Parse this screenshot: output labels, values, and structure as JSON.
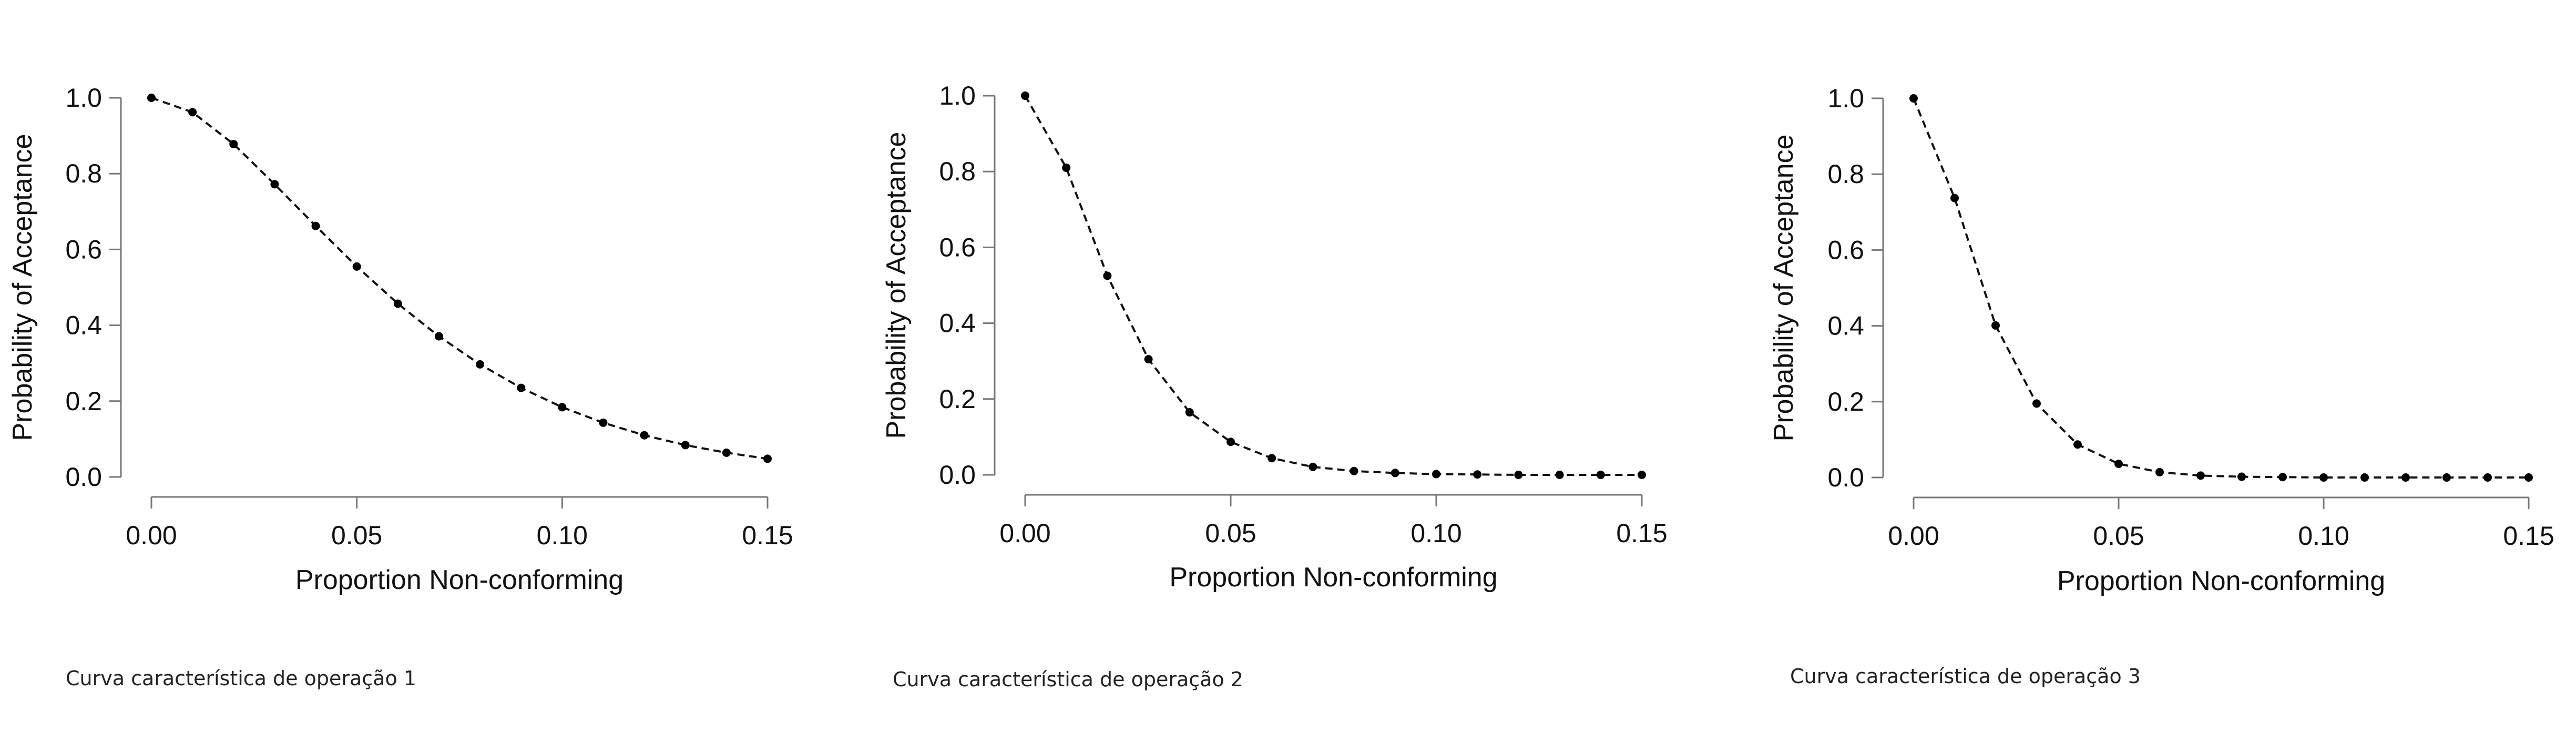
{
  "captions": [
    "Curva característica de operação 1",
    "Curva característica de operação 2",
    "Curva característica de operação 3"
  ],
  "chart_data": [
    {
      "type": "line",
      "xlabel": "Proportion Non-conforming",
      "ylabel": "Probability of Acceptance",
      "xlim": [
        0,
        0.15
      ],
      "ylim": [
        0,
        1
      ],
      "x_ticks": [
        "0.00",
        "0.05",
        "0.10",
        "0.15"
      ],
      "y_ticks": [
        "0.0",
        "0.2",
        "0.4",
        "0.6",
        "0.8",
        "1.0"
      ],
      "grid": false,
      "line_style": "dashed",
      "marker": "dot",
      "series": [
        {
          "x": [
            0.0,
            0.01,
            0.02,
            0.03,
            0.04,
            0.05,
            0.06,
            0.07,
            0.08,
            0.09,
            0.1,
            0.11,
            0.12,
            0.13,
            0.14,
            0.15
          ],
          "y": [
            1.0,
            0.962,
            0.878,
            0.772,
            0.662,
            0.555,
            0.457,
            0.371,
            0.297,
            0.235,
            0.184,
            0.143,
            0.11,
            0.084,
            0.064,
            0.048
          ]
        }
      ]
    },
    {
      "type": "line",
      "xlabel": "Proportion Non-conforming",
      "ylabel": "Probability of Acceptance",
      "xlim": [
        0,
        0.15
      ],
      "ylim": [
        0,
        1
      ],
      "x_ticks": [
        "0.00",
        "0.05",
        "0.10",
        "0.15"
      ],
      "y_ticks": [
        "0.0",
        "0.2",
        "0.4",
        "0.6",
        "0.8",
        "1.0"
      ],
      "grid": false,
      "line_style": "dashed",
      "marker": "dot",
      "series": [
        {
          "x": [
            0.0,
            0.01,
            0.02,
            0.03,
            0.04,
            0.05,
            0.06,
            0.07,
            0.08,
            0.09,
            0.1,
            0.11,
            0.12,
            0.13,
            0.14,
            0.15
          ],
          "y": [
            1.0,
            0.81,
            0.525,
            0.305,
            0.165,
            0.087,
            0.044,
            0.021,
            0.01,
            0.005,
            0.002,
            0.001,
            0.0,
            0.0,
            0.0,
            0.0
          ]
        }
      ]
    },
    {
      "type": "line",
      "xlabel": "Proportion Non-conforming",
      "ylabel": "Probability of Acceptance",
      "xlim": [
        0,
        0.15
      ],
      "ylim": [
        0,
        1
      ],
      "x_ticks": [
        "0.00",
        "0.05",
        "0.10",
        "0.15"
      ],
      "y_ticks": [
        "0.0",
        "0.2",
        "0.4",
        "0.6",
        "0.8",
        "1.0"
      ],
      "grid": false,
      "line_style": "dashed",
      "marker": "dot",
      "series": [
        {
          "x": [
            0.0,
            0.01,
            0.02,
            0.03,
            0.04,
            0.05,
            0.06,
            0.07,
            0.08,
            0.09,
            0.1,
            0.11,
            0.12,
            0.13,
            0.14,
            0.15
          ],
          "y": [
            1.0,
            0.737,
            0.401,
            0.195,
            0.087,
            0.036,
            0.014,
            0.005,
            0.002,
            0.001,
            0.0,
            0.0,
            0.0,
            0.0,
            0.0,
            0.0
          ]
        }
      ]
    }
  ]
}
